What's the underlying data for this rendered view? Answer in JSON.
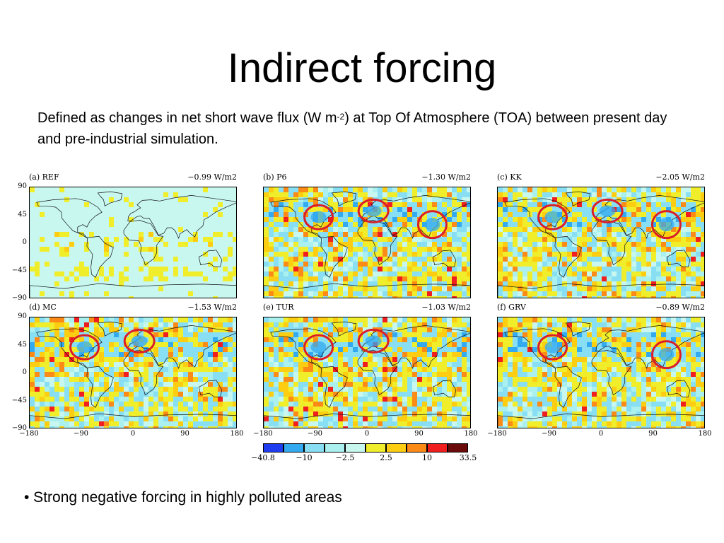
{
  "slide": {
    "title": "Indirect forcing",
    "description_part1": "Defined as changes in net short wave flux (W m",
    "description_sup": "-2",
    "description_part2": ") at Top Of Atmosphere (TOA) between  present day and pre-industrial simulation.",
    "bullet": "• Strong negative forcing in highly polluted areas"
  },
  "panels": [
    {
      "label": "(a) REF",
      "value": "−0.99 W/m2",
      "circles": []
    },
    {
      "label": "(b) P6",
      "value": "−1.30 W/m2",
      "circles": [
        "north-america",
        "europe",
        "east-asia"
      ]
    },
    {
      "label": "(c) KK",
      "value": "−2.05 W/m2",
      "circles": [
        "north-america",
        "europe",
        "east-asia"
      ]
    },
    {
      "label": "(d) MC",
      "value": "−1.53 W/m2",
      "circles": [
        "north-america",
        "europe"
      ]
    },
    {
      "label": "(e) TUR",
      "value": "−1.03 W/m2",
      "circles": [
        "north-america",
        "europe"
      ]
    },
    {
      "label": "(f) GRV",
      "value": "−0.89 W/m2",
      "circles": [
        "north-america",
        "east-asia"
      ]
    }
  ],
  "axes": {
    "y_ticks": [
      "90",
      "45",
      "0",
      "−45",
      "−90"
    ],
    "x_ticks": [
      "−180",
      "−90",
      "0",
      "90",
      "180"
    ]
  },
  "colorbar": {
    "colors": [
      "#1f3cf0",
      "#33a9f0",
      "#88dff4",
      "#a9f0ef",
      "#c8f7f0",
      "#f0ee2a",
      "#fccd10",
      "#fb8b16",
      "#f01e1e",
      "#6b0a0a"
    ],
    "labels": [
      "−40.8",
      "−10",
      "−2.5",
      "2.5",
      "10",
      "33.5"
    ]
  },
  "highlight_color": "#d91e2a"
}
